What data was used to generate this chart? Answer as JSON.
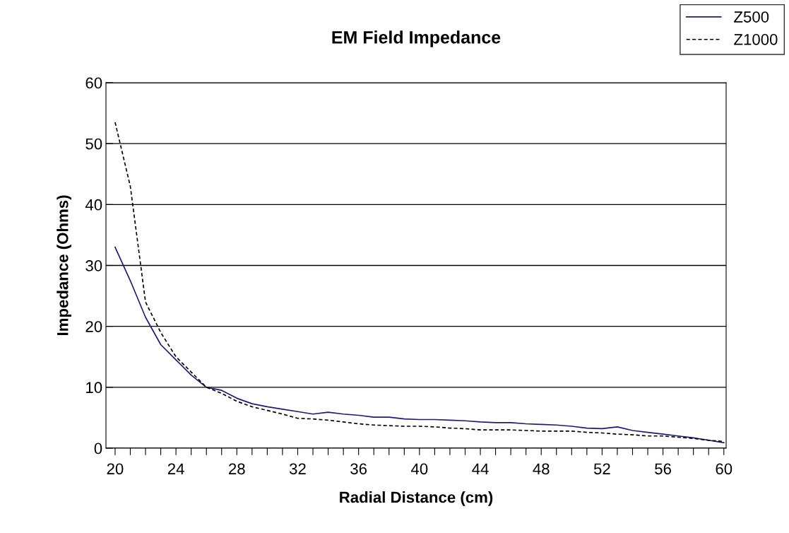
{
  "chart_data": {
    "type": "line",
    "title": "EM Field Impedance",
    "xlabel": "Radial Distance (cm)",
    "ylabel": "Impedance (Ohms)",
    "x": [
      20,
      21,
      22,
      23,
      24,
      25,
      26,
      27,
      28,
      29,
      30,
      31,
      32,
      33,
      34,
      35,
      36,
      37,
      38,
      39,
      40,
      41,
      42,
      43,
      44,
      45,
      46,
      47,
      48,
      49,
      50,
      51,
      52,
      53,
      54,
      55,
      56,
      57,
      58,
      59,
      60
    ],
    "series": [
      {
        "name": "Z500",
        "color": "#1c1c78",
        "line_style": "solid",
        "values": [
          33,
          27.5,
          21.5,
          17,
          14.5,
          12,
          10,
          9.5,
          8.2,
          7.3,
          6.8,
          6.4,
          6,
          5.6,
          5.9,
          5.6,
          5.4,
          5.1,
          5.1,
          4.8,
          4.7,
          4.7,
          4.6,
          4.5,
          4.3,
          4.2,
          4.2,
          4,
          3.9,
          3.8,
          3.6,
          3.3,
          3.2,
          3.5,
          2.9,
          2.6,
          2.3,
          2,
          1.7,
          1.3,
          0.9
        ]
      },
      {
        "name": "Z1000",
        "color": "#000000",
        "line_style": "dashed",
        "values": [
          53.5,
          43,
          24,
          19,
          15,
          12.5,
          10,
          9,
          7.7,
          6.8,
          6.2,
          5.6,
          4.9,
          4.8,
          4.6,
          4.3,
          4,
          3.8,
          3.7,
          3.6,
          3.6,
          3.5,
          3.3,
          3.2,
          3,
          3,
          3,
          2.9,
          2.8,
          2.8,
          2.8,
          2.6,
          2.5,
          2.3,
          2.2,
          2,
          2,
          1.8,
          1.6,
          1.3,
          1.1
        ]
      }
    ],
    "xlim": [
      19.4,
      60.15
    ],
    "xticks": [
      20,
      {
        "value": 21,
        "label": null
      },
      {
        "value": 22,
        "label": null
      },
      {
        "value": 23,
        "label": null
      },
      24,
      {
        "value": 25,
        "label": null
      },
      {
        "value": 26,
        "label": null
      },
      {
        "value": 27,
        "label": null
      },
      28,
      {
        "value": 29,
        "label": null
      },
      {
        "value": 30,
        "label": null
      },
      {
        "value": 31,
        "label": null
      },
      32,
      {
        "value": 33,
        "label": null
      },
      {
        "value": 34,
        "label": null
      },
      {
        "value": 35,
        "label": null
      },
      36,
      {
        "value": 37,
        "label": null
      },
      {
        "value": 38,
        "label": null
      },
      {
        "value": 39,
        "label": null
      },
      40,
      {
        "value": 41,
        "label": null
      },
      {
        "value": 42,
        "label": null
      },
      {
        "value": 43,
        "label": null
      },
      44,
      {
        "value": 45,
        "label": null
      },
      {
        "value": 46,
        "label": null
      },
      {
        "value": 47,
        "label": null
      },
      48,
      {
        "value": 49,
        "label": null
      },
      {
        "value": 50,
        "label": null
      },
      {
        "value": 51,
        "label": null
      },
      52,
      {
        "value": 53,
        "label": null
      },
      {
        "value": 54,
        "label": null
      },
      {
        "value": 55,
        "label": null
      },
      56,
      {
        "value": 57,
        "label": null
      },
      {
        "value": 58,
        "label": null
      },
      {
        "value": 59,
        "label": null
      },
      60
    ],
    "ylim": [
      0,
      60
    ],
    "yticks": [
      0,
      10,
      20,
      30,
      40,
      50,
      60
    ],
    "grid": "y",
    "legend": "top right",
    "marker": "none"
  }
}
